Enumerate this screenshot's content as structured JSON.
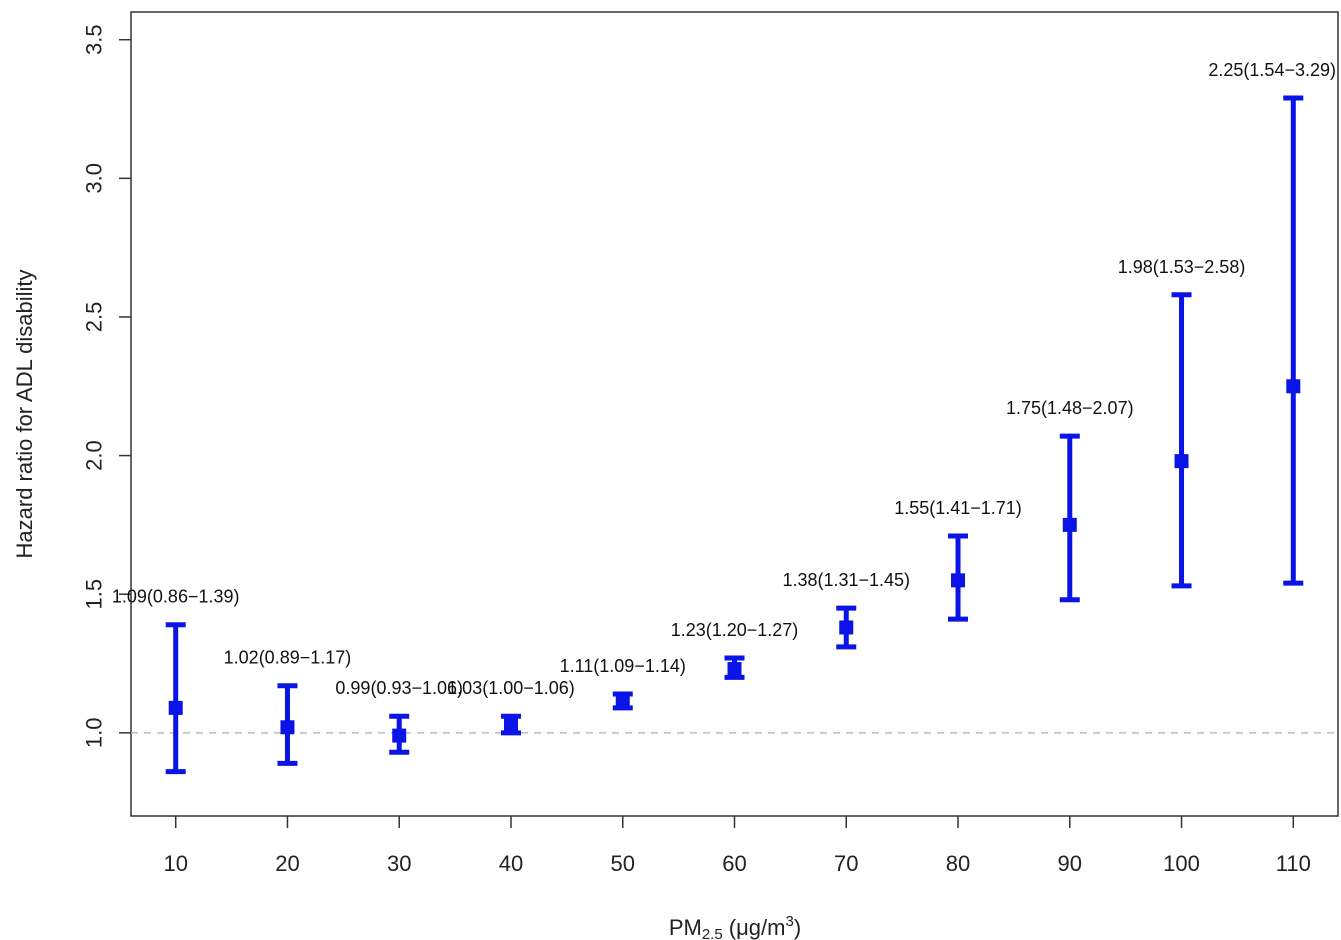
{
  "chart_data": {
    "type": "scatter",
    "xlabel": {
      "main": "PM",
      "sub": "2.5",
      "unit_pre": " (μg/m",
      "unit_sup": "3",
      "unit_post": ")"
    },
    "ylabel": "Hazard ratio for ADL disability",
    "x_ticks": [
      "10",
      "20",
      "30",
      "40",
      "50",
      "60",
      "70",
      "80",
      "90",
      "100",
      "110"
    ],
    "y_ticks": [
      "1.0",
      "1.5",
      "2.0",
      "2.5",
      "3.0",
      "3.5"
    ],
    "xlim": [
      6,
      114
    ],
    "ylim": [
      0.7,
      3.6
    ],
    "reference_line": 1.0,
    "grid": false,
    "series_color": "#0a14e6",
    "reference_color": "#bbbbbb",
    "points": [
      {
        "x": 10,
        "hr": 1.09,
        "lower": 0.86,
        "upper": 1.39,
        "label": "1.09(0.86−1.39)"
      },
      {
        "x": 20,
        "hr": 1.02,
        "lower": 0.89,
        "upper": 1.17,
        "label": "1.02(0.89−1.17)"
      },
      {
        "x": 30,
        "hr": 0.99,
        "lower": 0.93,
        "upper": 1.06,
        "label": "0.99(0.93−1.06)"
      },
      {
        "x": 40,
        "hr": 1.03,
        "lower": 1.0,
        "upper": 1.06,
        "label": "1.03(1.00−1.06)"
      },
      {
        "x": 50,
        "hr": 1.11,
        "lower": 1.09,
        "upper": 1.14,
        "label": "1.11(1.09−1.14)"
      },
      {
        "x": 60,
        "hr": 1.23,
        "lower": 1.2,
        "upper": 1.27,
        "label": "1.23(1.20−1.27)"
      },
      {
        "x": 70,
        "hr": 1.38,
        "lower": 1.31,
        "upper": 1.45,
        "label": "1.38(1.31−1.45)"
      },
      {
        "x": 80,
        "hr": 1.55,
        "lower": 1.41,
        "upper": 1.71,
        "label": "1.55(1.41−1.71)"
      },
      {
        "x": 90,
        "hr": 1.75,
        "lower": 1.48,
        "upper": 2.07,
        "label": "1.75(1.48−2.07)"
      },
      {
        "x": 100,
        "hr": 1.98,
        "lower": 1.53,
        "upper": 2.58,
        "label": "1.98(1.53−2.58)"
      },
      {
        "x": 110,
        "hr": 2.25,
        "lower": 1.54,
        "upper": 3.29,
        "label": "2.25(1.54−3.29)"
      }
    ]
  }
}
